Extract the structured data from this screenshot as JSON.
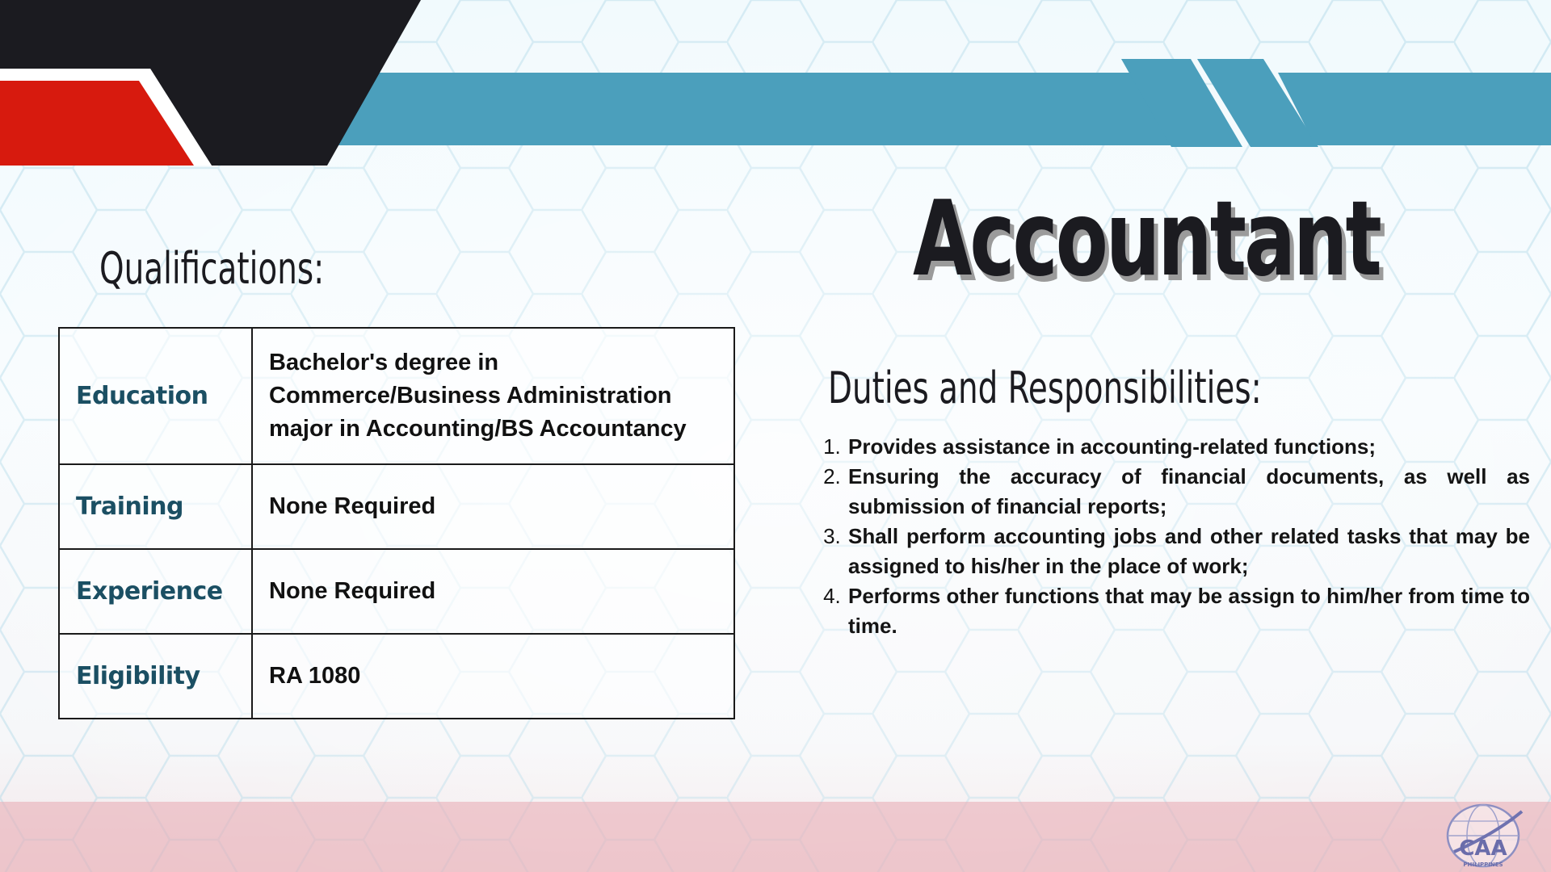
{
  "slide": {
    "title": "Accountant",
    "colors": {
      "red": "#d71a0e",
      "black": "#1b1b20",
      "teal_band": "#4b9fbc",
      "label_teal": "#1b4f63",
      "pink_band": "#e8b0b8"
    }
  },
  "qualifications": {
    "heading": "Qualifications:",
    "rows": [
      {
        "label": "Education",
        "value": "Bachelor's degree in Commerce/Business Administration major in Accounting/BS Accountancy"
      },
      {
        "label": "Training",
        "value": "None Required"
      },
      {
        "label": "Experience",
        "value": "None Required"
      },
      {
        "label": "Eligibility",
        "value": "RA 1080"
      }
    ]
  },
  "duties": {
    "heading": "Duties and Responsibilities:",
    "items": [
      "Provides assistance in accounting-related functions;",
      "Ensuring the accuracy of financial documents, as well as submission of financial reports;",
      "Shall perform accounting jobs and other related tasks that may be assigned to his/her in the place of work;",
      "Performs other functions that may be assign to him/her from time to time."
    ]
  },
  "logo": {
    "icon": "caa-philippines-logo",
    "text": "CAA",
    "subtext": "PHILIPPINES"
  }
}
